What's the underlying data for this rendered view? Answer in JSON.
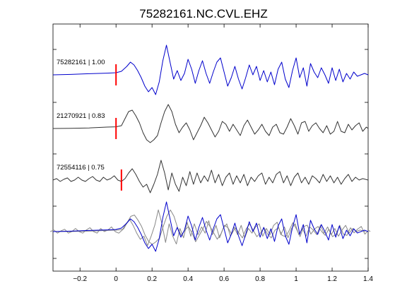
{
  "chart_data": {
    "type": "line",
    "title": "75282161.NC.CVL.EHZ",
    "xlabel": "",
    "ylabel": "",
    "xlim": [
      -0.35,
      1.4
    ],
    "xticks": [
      -0.2,
      0,
      0.2,
      0.4,
      0.6,
      0.8,
      1,
      1.2,
      1.4
    ],
    "xtick_labels": [
      "−0.2",
      "0",
      "0.2",
      "0.4",
      "0.6",
      "0.8",
      "1",
      "1.2",
      "1.4"
    ],
    "grid": false,
    "legend": "none",
    "colors": {
      "master": "#0000cc",
      "trace": "#333333",
      "overlay_other": "#888888",
      "pick": "#ff0000"
    },
    "traces": [
      {
        "label": "75282161 | 1.00",
        "pick_time": 0.0,
        "color": "#0000cc",
        "points": [
          [
            -0.35,
            0
          ],
          [
            -0.25,
            0.3
          ],
          [
            -0.15,
            0.8
          ],
          [
            -0.05,
            1.2
          ],
          [
            0,
            1.5
          ],
          [
            0.03,
            2.5
          ],
          [
            0.06,
            6
          ],
          [
            0.08,
            9
          ],
          [
            0.1,
            7
          ],
          [
            0.12,
            3
          ],
          [
            0.14,
            -2
          ],
          [
            0.16,
            -8
          ],
          [
            0.18,
            -12
          ],
          [
            0.2,
            -9
          ],
          [
            0.22,
            -14
          ],
          [
            0.24,
            -5
          ],
          [
            0.26,
            10
          ],
          [
            0.28,
            21
          ],
          [
            0.3,
            9
          ],
          [
            0.32,
            -3
          ],
          [
            0.34,
            3
          ],
          [
            0.36,
            -4
          ],
          [
            0.38,
            1
          ],
          [
            0.4,
            11
          ],
          [
            0.42,
            4
          ],
          [
            0.44,
            -6
          ],
          [
            0.46,
            3
          ],
          [
            0.48,
            10
          ],
          [
            0.5,
            1
          ],
          [
            0.52,
            -6
          ],
          [
            0.54,
            2
          ],
          [
            0.56,
            9
          ],
          [
            0.58,
            12
          ],
          [
            0.6,
            2
          ],
          [
            0.62,
            -8
          ],
          [
            0.64,
            -2
          ],
          [
            0.66,
            6
          ],
          [
            0.68,
            -3
          ],
          [
            0.7,
            -10
          ],
          [
            0.72,
            -2
          ],
          [
            0.74,
            7
          ],
          [
            0.76,
            0
          ],
          [
            0.78,
            6
          ],
          [
            0.8,
            -4
          ],
          [
            0.82,
            3
          ],
          [
            0.84,
            -5
          ],
          [
            0.86,
            2
          ],
          [
            0.88,
            -7
          ],
          [
            0.9,
            4
          ],
          [
            0.92,
            9
          ],
          [
            0.94,
            -3
          ],
          [
            0.96,
            -9
          ],
          [
            0.98,
            3
          ],
          [
            1.0,
            12
          ],
          [
            1.02,
            -2
          ],
          [
            1.04,
            5
          ],
          [
            1.06,
            -8
          ],
          [
            1.08,
            8
          ],
          [
            1.1,
            2
          ],
          [
            1.12,
            -2
          ],
          [
            1.14,
            5
          ],
          [
            1.16,
            0
          ],
          [
            1.18,
            -6
          ],
          [
            1.2,
            5
          ],
          [
            1.22,
            -4
          ],
          [
            1.24,
            4
          ],
          [
            1.26,
            -5
          ],
          [
            1.28,
            1
          ],
          [
            1.3,
            -3
          ],
          [
            1.32,
            2
          ],
          [
            1.34,
            -1
          ],
          [
            1.36,
            0
          ],
          [
            1.38,
            1
          ],
          [
            1.4,
            0
          ]
        ]
      },
      {
        "label": "21270921 | 0.83",
        "pick_time": 0.0,
        "color": "#333333",
        "points": [
          [
            -0.35,
            0
          ],
          [
            -0.25,
            0.1
          ],
          [
            -0.15,
            0.4
          ],
          [
            -0.05,
            1
          ],
          [
            0,
            1.2
          ],
          [
            0.03,
            2
          ],
          [
            0.05,
            7
          ],
          [
            0.07,
            12
          ],
          [
            0.09,
            13
          ],
          [
            0.11,
            9
          ],
          [
            0.13,
            4
          ],
          [
            0.15,
            -3
          ],
          [
            0.17,
            -8
          ],
          [
            0.19,
            -10
          ],
          [
            0.21,
            -8
          ],
          [
            0.23,
            -5
          ],
          [
            0.25,
            4
          ],
          [
            0.27,
            12
          ],
          [
            0.29,
            17
          ],
          [
            0.31,
            12
          ],
          [
            0.33,
            3
          ],
          [
            0.35,
            -3
          ],
          [
            0.37,
            1
          ],
          [
            0.39,
            4
          ],
          [
            0.41,
            -1
          ],
          [
            0.43,
            -8
          ],
          [
            0.45,
            -3
          ],
          [
            0.47,
            2
          ],
          [
            0.49,
            8
          ],
          [
            0.51,
            4
          ],
          [
            0.53,
            -1
          ],
          [
            0.55,
            -6
          ],
          [
            0.57,
            -2
          ],
          [
            0.59,
            5
          ],
          [
            0.61,
            3
          ],
          [
            0.63,
            -2
          ],
          [
            0.65,
            3
          ],
          [
            0.67,
            -1
          ],
          [
            0.69,
            -5
          ],
          [
            0.71,
            2
          ],
          [
            0.73,
            6
          ],
          [
            0.75,
            1
          ],
          [
            0.77,
            -4
          ],
          [
            0.79,
            -1
          ],
          [
            0.81,
            3
          ],
          [
            0.83,
            -2
          ],
          [
            0.85,
            -5
          ],
          [
            0.87,
            1
          ],
          [
            0.89,
            3
          ],
          [
            0.91,
            -3
          ],
          [
            0.93,
            -4
          ],
          [
            0.95,
            1
          ],
          [
            0.97,
            7
          ],
          [
            0.99,
            2
          ],
          [
            1.01,
            -4
          ],
          [
            1.03,
            4
          ],
          [
            1.05,
            5
          ],
          [
            1.07,
            -2
          ],
          [
            1.09,
            2
          ],
          [
            1.11,
            4
          ],
          [
            1.13,
            0
          ],
          [
            1.15,
            -3
          ],
          [
            1.17,
            2
          ],
          [
            1.19,
            -4
          ],
          [
            1.21,
            -2
          ],
          [
            1.23,
            5
          ],
          [
            1.25,
            -2
          ],
          [
            1.27,
            -3
          ],
          [
            1.29,
            3
          ],
          [
            1.31,
            -1
          ],
          [
            1.33,
            2
          ],
          [
            1.35,
            4
          ],
          [
            1.37,
            -2
          ],
          [
            1.39,
            1
          ],
          [
            1.4,
            0
          ]
        ]
      },
      {
        "label": "72554116 | 0.75",
        "pick_time": 0.03,
        "color": "#333333",
        "points": [
          [
            -0.35,
            0
          ],
          [
            -0.33,
            1
          ],
          [
            -0.31,
            -1
          ],
          [
            -0.29,
            0.5
          ],
          [
            -0.27,
            1.5
          ],
          [
            -0.25,
            -1
          ],
          [
            -0.23,
            0
          ],
          [
            -0.21,
            2
          ],
          [
            -0.19,
            0
          ],
          [
            -0.17,
            -1
          ],
          [
            -0.15,
            1
          ],
          [
            -0.13,
            2.5
          ],
          [
            -0.11,
            0
          ],
          [
            -0.09,
            -1
          ],
          [
            -0.07,
            2
          ],
          [
            -0.05,
            0
          ],
          [
            -0.03,
            1
          ],
          [
            -0.01,
            3
          ],
          [
            0.01,
            0
          ],
          [
            0.03,
            -1
          ],
          [
            0.05,
            1
          ],
          [
            0.07,
            5
          ],
          [
            0.09,
            8
          ],
          [
            0.11,
            4
          ],
          [
            0.13,
            -1
          ],
          [
            0.15,
            -5
          ],
          [
            0.17,
            -3
          ],
          [
            0.19,
            -9
          ],
          [
            0.21,
            -3
          ],
          [
            0.23,
            4
          ],
          [
            0.25,
            14
          ],
          [
            0.27,
            5
          ],
          [
            0.29,
            -7
          ],
          [
            0.31,
            5
          ],
          [
            0.33,
            -3
          ],
          [
            0.35,
            -8
          ],
          [
            0.37,
            2
          ],
          [
            0.39,
            -4
          ],
          [
            0.41,
            6
          ],
          [
            0.43,
            -3
          ],
          [
            0.45,
            5
          ],
          [
            0.47,
            -2
          ],
          [
            0.49,
            3
          ],
          [
            0.51,
            -1
          ],
          [
            0.53,
            7
          ],
          [
            0.55,
            -2
          ],
          [
            0.57,
            4
          ],
          [
            0.59,
            -4
          ],
          [
            0.61,
            2
          ],
          [
            0.63,
            5
          ],
          [
            0.65,
            -3
          ],
          [
            0.67,
            3
          ],
          [
            0.69,
            -2
          ],
          [
            0.71,
            4
          ],
          [
            0.73,
            -4
          ],
          [
            0.75,
            2
          ],
          [
            0.77,
            -1
          ],
          [
            0.79,
            3
          ],
          [
            0.81,
            5
          ],
          [
            0.83,
            -3
          ],
          [
            0.85,
            2
          ],
          [
            0.87,
            -2
          ],
          [
            0.89,
            4
          ],
          [
            0.91,
            6
          ],
          [
            0.93,
            -2
          ],
          [
            0.95,
            3
          ],
          [
            0.97,
            -4
          ],
          [
            0.99,
            2
          ],
          [
            1.01,
            5
          ],
          [
            1.03,
            -2
          ],
          [
            1.05,
            2
          ],
          [
            1.07,
            -3
          ],
          [
            1.09,
            3
          ],
          [
            1.11,
            1
          ],
          [
            1.13,
            -2
          ],
          [
            1.15,
            4
          ],
          [
            1.17,
            -1
          ],
          [
            1.19,
            3
          ],
          [
            1.21,
            -2
          ],
          [
            1.23,
            2
          ],
          [
            1.25,
            -3
          ],
          [
            1.27,
            1
          ],
          [
            1.29,
            4
          ],
          [
            1.31,
            -1
          ],
          [
            1.33,
            2
          ],
          [
            1.35,
            0
          ],
          [
            1.37,
            1
          ],
          [
            1.4,
            0
          ]
        ]
      }
    ],
    "overlay": {
      "label": "",
      "series": [
        {
          "color": "#0000cc",
          "source_trace": 0,
          "amplitude": 1.0,
          "shift": 0.0
        },
        {
          "color": "#888888",
          "source_trace": 1,
          "amplitude": 0.9,
          "shift": 0.012
        },
        {
          "color": "#888888",
          "source_trace": 2,
          "amplitude": 1.1,
          "shift": -0.015
        }
      ]
    }
  }
}
